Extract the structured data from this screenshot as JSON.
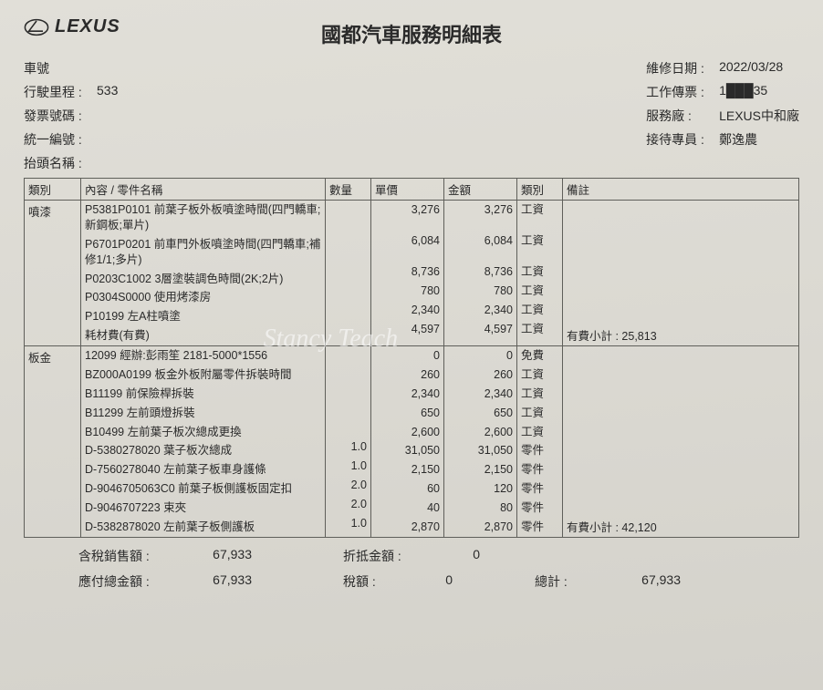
{
  "brand": {
    "logo_text": "LEXUS"
  },
  "title": "國都汽車服務明細表",
  "header_left": {
    "plate_label": "車號",
    "plate_value": "",
    "mileage_label": "行駛里程 :",
    "mileage_value": "533",
    "invoice_label": "發票號碼 :",
    "invoice_value": "",
    "tax_id_label": "統一編號 :",
    "tax_id_value": "",
    "title_name_label": "抬頭名稱 :",
    "title_name_value": ""
  },
  "header_right": {
    "date_label": "維修日期 :",
    "date_value": "2022/03/28",
    "ticket_label": "工作傳票 :",
    "ticket_value": "1███35",
    "shop_label": "服務廠 :",
    "shop_value": "LEXUS中和廠",
    "advisor_label": "接待專員 :",
    "advisor_value": "鄭逸農"
  },
  "columns": {
    "category": "類別",
    "desc": "內容 / 零件名稱",
    "qty": "數量",
    "unit": "單價",
    "amount": "金額",
    "type": "類別",
    "note": "備註"
  },
  "sections": [
    {
      "category": "噴漆",
      "rows": [
        {
          "desc": "P5381P0101 前葉子板外板噴塗時間(四門轎車;新鋼板;單片)",
          "qty": "",
          "unit": "3,276",
          "amount": "3,276",
          "type": "工資"
        },
        {
          "desc": "P6701P0201 前車門外板噴塗時間(四門轎車;補修1/1;多片)",
          "qty": "",
          "unit": "6,084",
          "amount": "6,084",
          "type": "工資"
        },
        {
          "desc": "P0203C1002 3層塗裝調色時間(2K;2片)",
          "qty": "",
          "unit": "8,736",
          "amount": "8,736",
          "type": "工資"
        },
        {
          "desc": "P0304S0000 使用烤漆房",
          "qty": "",
          "unit": "780",
          "amount": "780",
          "type": "工資"
        },
        {
          "desc": "P10199 左A柱噴塗",
          "qty": "",
          "unit": "2,340",
          "amount": "2,340",
          "type": "工資"
        },
        {
          "desc": "耗材費(有費)",
          "qty": "",
          "unit": "4,597",
          "amount": "4,597",
          "type": "工資"
        }
      ],
      "subtotal_label": "有費小計 :",
      "subtotal_value": "25,813"
    },
    {
      "category": "板金",
      "rows": [
        {
          "desc": "12099 經辦:彭雨笙 2181-5000*1556",
          "qty": "",
          "unit": "0",
          "amount": "0",
          "type": "免費"
        },
        {
          "desc": "BZ000A0199 板金外板附屬零件拆裝時間",
          "qty": "",
          "unit": "260",
          "amount": "260",
          "type": "工資"
        },
        {
          "desc": "B11199 前保險桿拆裝",
          "qty": "",
          "unit": "2,340",
          "amount": "2,340",
          "type": "工資"
        },
        {
          "desc": "B11299 左前頭燈拆裝",
          "qty": "",
          "unit": "650",
          "amount": "650",
          "type": "工資"
        },
        {
          "desc": "B10499 左前葉子板次總成更換",
          "qty": "",
          "unit": "2,600",
          "amount": "2,600",
          "type": "工資"
        },
        {
          "desc": "D-5380278020 葉子板次總成",
          "qty": "1.0",
          "unit": "31,050",
          "amount": "31,050",
          "type": "零件"
        },
        {
          "desc": "D-7560278040 左前葉子板車身護條",
          "qty": "1.0",
          "unit": "2,150",
          "amount": "2,150",
          "type": "零件"
        },
        {
          "desc": "D-9046705063C0 前葉子板側護板固定扣",
          "qty": "2.0",
          "unit": "60",
          "amount": "120",
          "type": "零件"
        },
        {
          "desc": "D-9046707223 束夾",
          "qty": "2.0",
          "unit": "40",
          "amount": "80",
          "type": "零件"
        },
        {
          "desc": "D-5382878020 左前葉子板側護板",
          "qty": "1.0",
          "unit": "2,870",
          "amount": "2,870",
          "type": "零件"
        }
      ],
      "subtotal_label": "有費小計 :",
      "subtotal_value": "42,120"
    }
  ],
  "totals": {
    "taxed_sales_label": "含稅銷售額 :",
    "taxed_sales_value": "67,933",
    "discount_label": "折抵金額 :",
    "discount_value": "0",
    "payable_label": "應付總金額 :",
    "payable_value": "67,933",
    "tax_label": "稅額 :",
    "tax_value": "0",
    "grand_label": "總計 :",
    "grand_value": "67,933"
  },
  "watermark": "Stancy Teach"
}
